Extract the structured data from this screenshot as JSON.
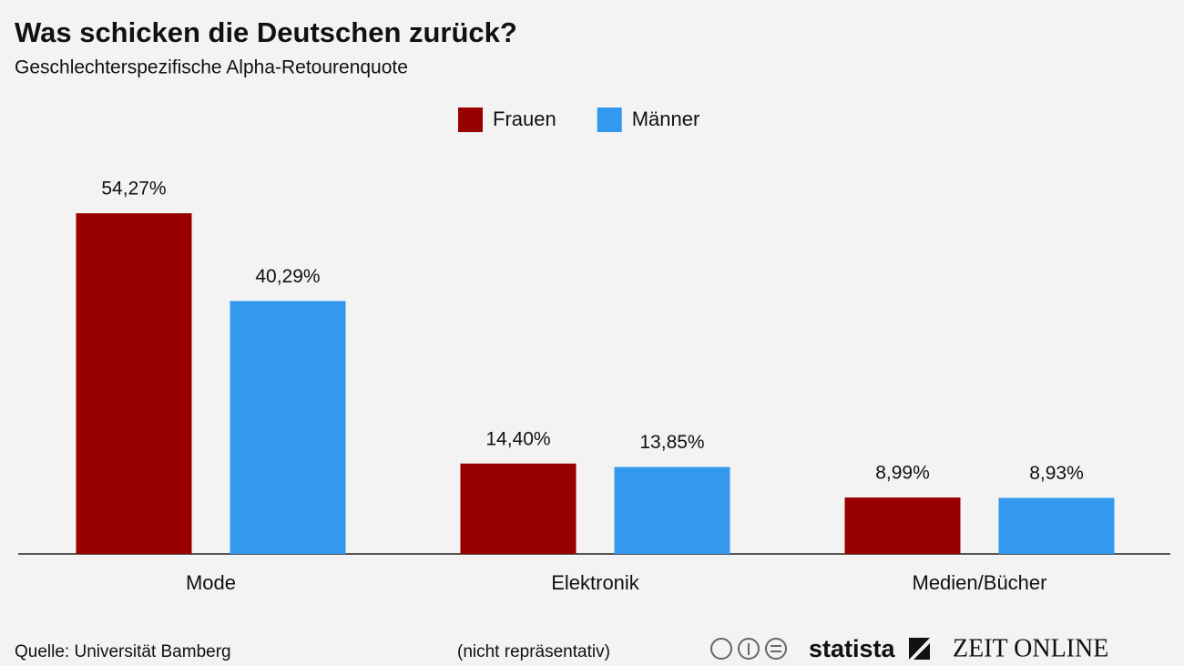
{
  "chart_data": {
    "type": "bar",
    "title": "Was schicken die Deutschen zurück?",
    "subtitle": "Geschlechterspezifische Alpha-Retourenquote",
    "categories": [
      "Mode",
      "Elektronik",
      "Medien/Bücher"
    ],
    "series": [
      {
        "name": "Frauen",
        "color": "#990000",
        "values": [
          54.27,
          14.4,
          8.99
        ],
        "value_labels": [
          "54,27%",
          "14,40%",
          "8,99%"
        ]
      },
      {
        "name": "Männer",
        "color": "#3399ee",
        "values": [
          40.29,
          13.85,
          8.93
        ],
        "value_labels": [
          "40,29%",
          "13,85%",
          "8,93%"
        ]
      }
    ],
    "legend": "top"
  },
  "footer": {
    "source": "Quelle: Universität Bamberg",
    "note": "(nicht repräsentativ)",
    "logo_statista": "statista",
    "logo_zeit": "ZEIT ONLINE"
  }
}
